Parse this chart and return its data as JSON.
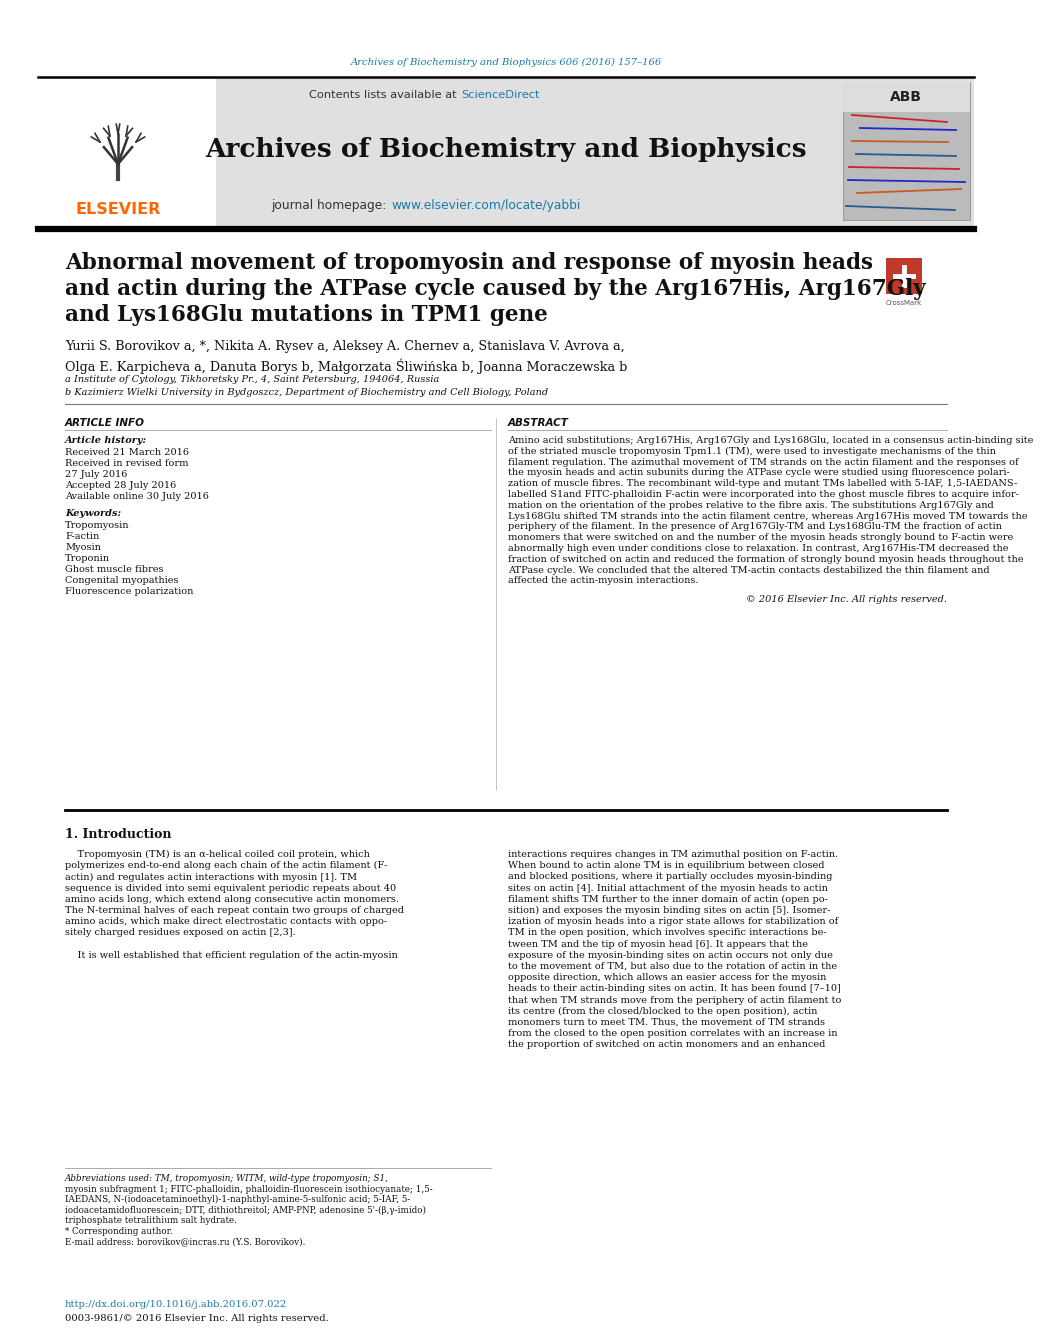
{
  "page_bg": "#ffffff",
  "top_citation": "Archives of Biochemistry and Biophysics 606 (2016) 157–166",
  "top_citation_color": "#1a7aaa",
  "header_bg": "#d8d8d8",
  "journal_name": "Archives of Biochemistry and Biophysics",
  "sciencedirect_color": "#1a7aaa",
  "homepage_url_color": "#1a7aaa",
  "elsevier_color": "#ff6600",
  "paper_title_line1": "Abnormal movement of tropomyosin and response of myosin heads",
  "paper_title_line2": "and actin during the ATPase cycle caused by the Arg167His, Arg167Gly",
  "paper_title_line3": "and Lys168Glu mutations in TPM1 gene",
  "authors_line1": "Yurii S. Borovikov a, *, Nikita A. Rysev a, Aleksey A. Chernev a, Stanislava V. Avrova a,",
  "authors_line2": "Olga E. Karpicheva a, Danuta Borys b, Małgorzata Śliwińska b, Joanna Moraczewska b",
  "affil_a": "a Institute of Cytology, Tikhoretsky Pr., 4, Saint Petersburg, 194064, Russia",
  "affil_b": "b Kazimierz Wielki University in Bydgoszcz, Department of Biochemistry and Cell Biology, Poland",
  "article_info_header": "ARTICLE INFO",
  "article_history_label": "Article history:",
  "history_lines": [
    "Received 21 March 2016",
    "Received in revised form",
    "27 July 2016",
    "Accepted 28 July 2016",
    "Available online 30 July 2016"
  ],
  "keywords_label": "Keywords:",
  "keywords": [
    "Tropomyosin",
    "F-actin",
    "Myosin",
    "Troponin",
    "Ghost muscle fibres",
    "Congenital myopathies",
    "Fluorescence polarization"
  ],
  "abstract_header": "ABSTRACT",
  "abstract_lines": [
    "Amino acid substitutions; Arg167His, Arg167Gly and Lys168Glu, located in a consensus actin-binding site",
    "of the striated muscle tropomyosin Tpm1.1 (TM), were used to investigate mechanisms of the thin",
    "filament regulation. The azimuthal movement of TM strands on the actin filament and the responses of",
    "the myosin heads and actin subunits during the ATPase cycle were studied using fluorescence polari-",
    "zation of muscle fibres. The recombinant wild-type and mutant TMs labelled with 5-IAF, 1,5-IAEDANS-",
    "labelled S1and FITC-phalloidin F-actin were incorporated into the ghost muscle fibres to acquire infor-",
    "mation on the orientation of the probes relative to the fibre axis. The substitutions Arg167Gly and",
    "Lys168Glu shifted TM strands into the actin filament centre, whereas Arg167His moved TM towards the",
    "periphery of the filament. In the presence of Arg167Gly-TM and Lys168Glu-TM the fraction of actin",
    "monomers that were switched on and the number of the myosin heads strongly bound to F-actin were",
    "abnormally high even under conditions close to relaxation. In contrast, Arg167His-TM decreased the",
    "fraction of switched on actin and reduced the formation of strongly bound myosin heads throughout the",
    "ATPase cycle. We concluded that the altered TM-actin contacts destabilized the thin filament and",
    "affected the actin-myosin interactions."
  ],
  "copyright_line": "© 2016 Elsevier Inc. All rights reserved.",
  "section1_header": "1. Introduction",
  "intro_left_lines": [
    "    Tropomyosin (TM) is an α-helical coiled coil protein, which",
    "polymerizes end-to-end along each chain of the actin filament (F-",
    "actin) and regulates actin interactions with myosin [1]. TM",
    "sequence is divided into semi equivalent periodic repeats about 40",
    "amino acids long, which extend along consecutive actin monomers.",
    "The N-terminal halves of each repeat contain two groups of charged",
    "amino acids, which make direct electrostatic contacts with oppo-",
    "sitely charged residues exposed on actin [2,3].",
    "",
    "    It is well established that efficient regulation of the actin-myosin"
  ],
  "intro_right_lines": [
    "interactions requires changes in TM azimuthal position on F-actin.",
    "When bound to actin alone TM is in equilibrium between closed",
    "and blocked positions, where it partially occludes myosin-binding",
    "sites on actin [4]. Initial attachment of the myosin heads to actin",
    "filament shifts TM further to the inner domain of actin (open po-",
    "sition) and exposes the myosin binding sites on actin [5]. Isomer-",
    "ization of myosin heads into a rigor state allows for stabilization of",
    "TM in the open position, which involves specific interactions be-",
    "tween TM and the tip of myosin head [6]. It appears that the",
    "exposure of the myosin-binding sites on actin occurs not only due",
    "to the movement of TM, but also due to the rotation of actin in the",
    "opposite direction, which allows an easier access for the myosin",
    "heads to their actin-binding sites on actin. It has been found [7–10]",
    "that when TM strands move from the periphery of actin filament to",
    "its centre (from the closed/blocked to the open position), actin",
    "monomers turn to meet TM. Thus, the movement of TM strands",
    "from the closed to the open position correlates with an increase in",
    "the proportion of switched on actin monomers and an enhanced"
  ],
  "footnote_lines": [
    "Abbreviations used: TM, tropomyosin; WITM, wild-type tropomyosin; S1,",
    "myosin subfragment 1; FITC-phalloidin, phalloidin-fluorescein isothiocyanate; 1,5-",
    "IAEDANS, N-(iodoacetaminoethyl)-1-naphthyl-amine-5-sulfonic acid; 5-IAF, 5-",
    "iodoacetamidofluorescein; DTT, dithiothreitol; AMP-PNP, adenosine 5'-(β,γ-imido)",
    "triphosphate tetralithium salt hydrate.",
    "* Corresponding author.",
    "E-mail address: borovikov@incras.ru (Y.S. Borovikov)."
  ],
  "doi_text": "http://dx.doi.org/10.1016/j.abb.2016.07.022",
  "doi_color": "#1a7aaa",
  "issn_text": "0003-9861/© 2016 Elsevier Inc. All rights reserved."
}
